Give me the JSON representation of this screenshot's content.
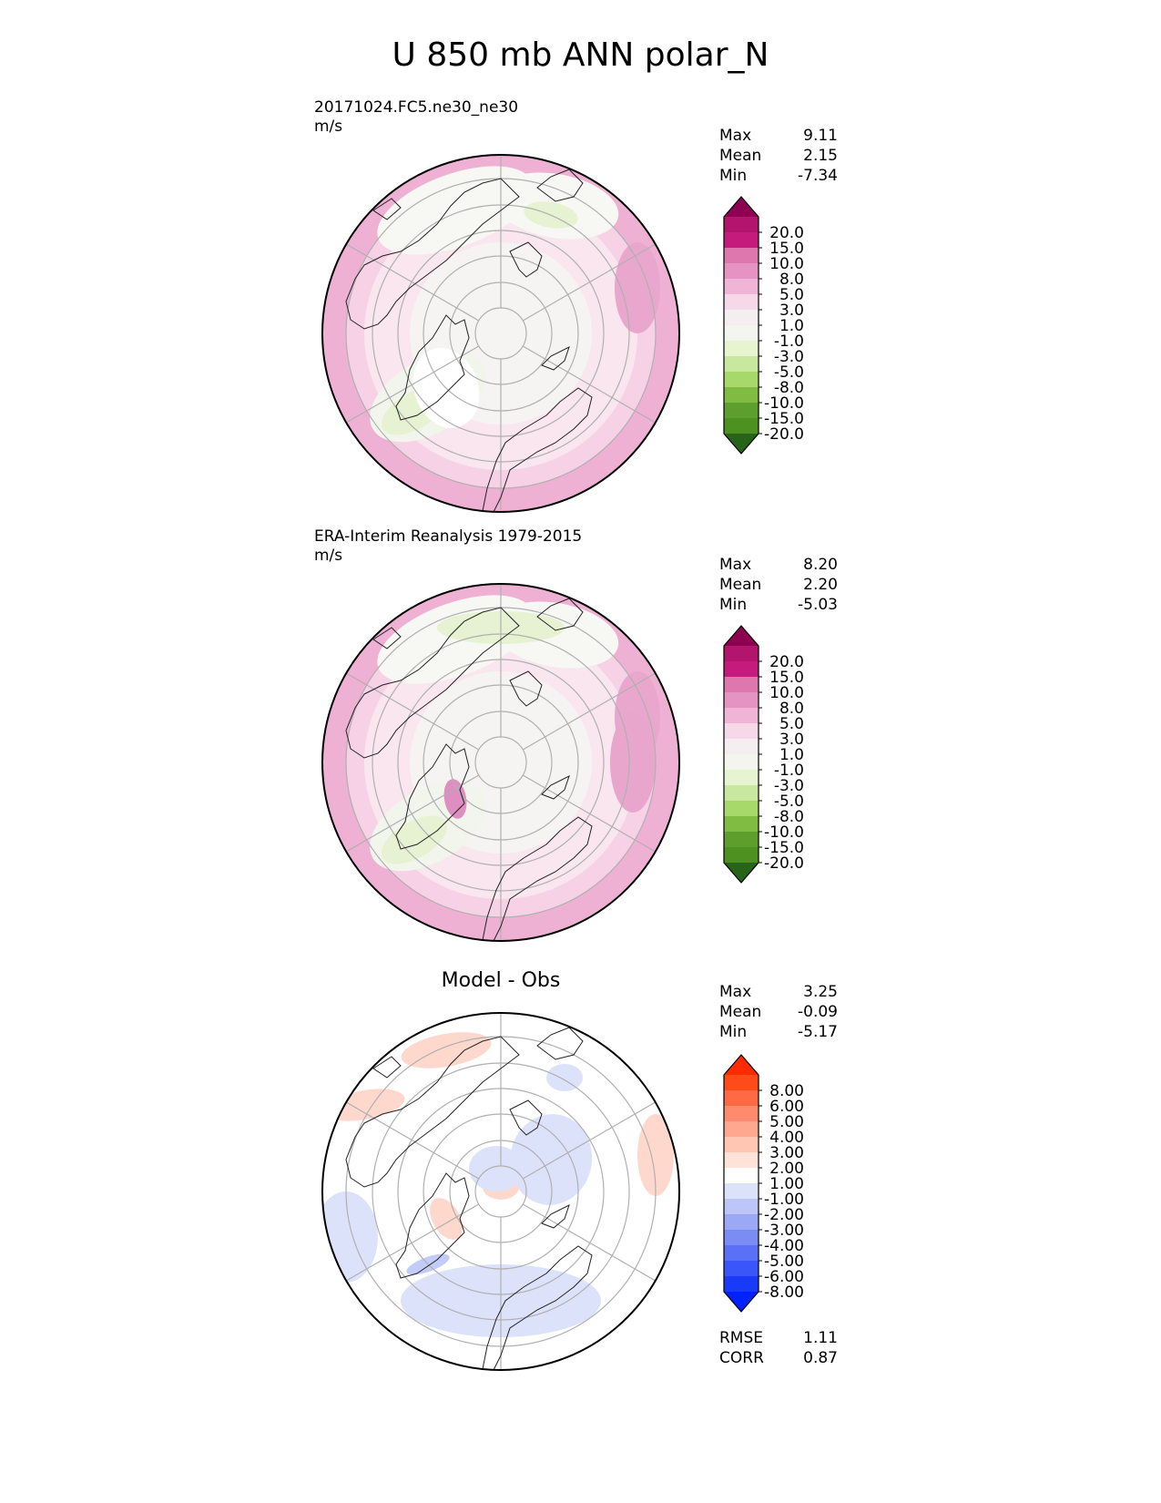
{
  "figure": {
    "title": "U 850 mb ANN polar_N"
  },
  "chart_data": [
    {
      "type": "heatmap",
      "subtitle": "20171024.FC5.ne30_ne30",
      "units": "m/s",
      "projection": "polar_N",
      "stats": [
        {
          "label": "Max",
          "value": "9.11"
        },
        {
          "label": "Mean",
          "value": "2.15"
        },
        {
          "label": "Min",
          "value": "-7.34"
        }
      ],
      "colorbar_levels": [
        "20.0",
        "15.0",
        "10.0",
        "8.0",
        "5.0",
        "3.0",
        "1.0",
        "-1.0",
        "-3.0",
        "-5.0",
        "-8.0",
        "-10.0",
        "-15.0",
        "-20.0"
      ],
      "colorbar_colors": [
        "#8e0152",
        "#b3146c",
        "#c51b7d",
        "#de77ae",
        "#e593c2",
        "#efb4d6",
        "#f7d8e8",
        "#f4eef1",
        "#f3f6ee",
        "#e6f5d0",
        "#c8e79f",
        "#a6d96a",
        "#7fbc41",
        "#5e9e2c",
        "#4d9221",
        "#276419"
      ],
      "grid": true
    },
    {
      "type": "heatmap",
      "subtitle": "ERA-Interim Reanalysis 1979-2015",
      "units": "m/s",
      "projection": "polar_N",
      "stats": [
        {
          "label": "Max",
          "value": "8.20"
        },
        {
          "label": "Mean",
          "value": "2.20"
        },
        {
          "label": "Min",
          "value": "-5.03"
        }
      ],
      "colorbar_levels": [
        "20.0",
        "15.0",
        "10.0",
        "8.0",
        "5.0",
        "3.0",
        "1.0",
        "-1.0",
        "-3.0",
        "-5.0",
        "-8.0",
        "-10.0",
        "-15.0",
        "-20.0"
      ],
      "colorbar_colors": [
        "#8e0152",
        "#b3146c",
        "#c51b7d",
        "#de77ae",
        "#e593c2",
        "#efb4d6",
        "#f7d8e8",
        "#f4eef1",
        "#f3f6ee",
        "#e6f5d0",
        "#c8e79f",
        "#a6d96a",
        "#7fbc41",
        "#5e9e2c",
        "#4d9221",
        "#276419"
      ],
      "grid": true
    },
    {
      "type": "heatmap",
      "title": "Model - Obs",
      "projection": "polar_N",
      "stats": [
        {
          "label": "Max",
          "value": "3.25"
        },
        {
          "label": "Mean",
          "value": "-0.09"
        },
        {
          "label": "Min",
          "value": "-5.17"
        }
      ],
      "metrics": [
        {
          "label": "RMSE",
          "value": "1.11"
        },
        {
          "label": "CORR",
          "value": "0.87"
        }
      ],
      "colorbar_levels": [
        "8.00",
        "6.00",
        "5.00",
        "4.00",
        "3.00",
        "2.00",
        "1.00",
        "-1.00",
        "-2.00",
        "-3.00",
        "-4.00",
        "-5.00",
        "-6.00",
        "-8.00"
      ],
      "colorbar_colors": [
        "#ff2a00",
        "#ff4a1a",
        "#ff6a44",
        "#ff8a6e",
        "#ffa890",
        "#ffc6b4",
        "#ffe2d8",
        "#ffffff",
        "#dde2fb",
        "#bcc6f8",
        "#9aa8f6",
        "#7c8cf5",
        "#5a70f6",
        "#3a55f8",
        "#1a3af9",
        "#0022ff"
      ],
      "grid": true
    }
  ]
}
